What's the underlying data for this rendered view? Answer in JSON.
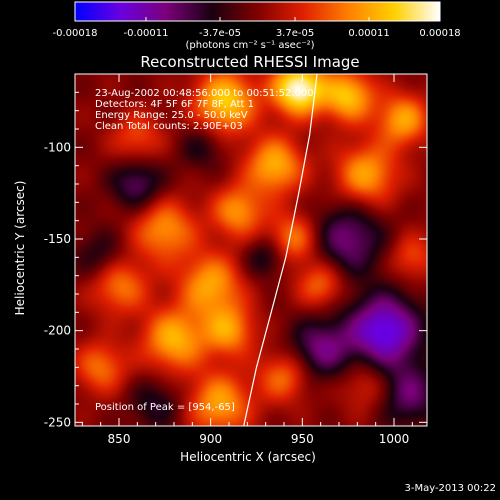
{
  "colorbar": {
    "tick_labels": [
      "-0.00018",
      "-0.00011",
      "-3.7e-05",
      "3.7e-05",
      "0.00011",
      "0.00018"
    ],
    "tick_values": [
      -0.00018,
      -0.00011,
      -3.7e-05,
      3.7e-05,
      0.00011,
      0.00018
    ],
    "range": [
      -0.00018,
      0.00018
    ],
    "units_text": "(photons cm⁻² s⁻¹ asec⁻²)",
    "colors": [
      "#0000ff",
      "#6a00e0",
      "#7a007a",
      "#1a0010",
      "#800000",
      "#e02000",
      "#ff8000",
      "#ffd000",
      "#ffffff"
    ]
  },
  "chart_data": {
    "type": "heatmap",
    "title": "Reconstructed RHESSI Image",
    "xlabel": "Heliocentric X (arcsec)",
    "ylabel": "Heliocentric Y (arcsec)",
    "xlim": [
      826,
      1018
    ],
    "ylim": [
      -252,
      -60
    ],
    "x_ticks": [
      850,
      900,
      950,
      1000
    ],
    "y_ticks": [
      -100,
      -150,
      -200,
      -250
    ],
    "x_tick_labels": [
      "850",
      "900",
      "950",
      "1000"
    ],
    "y_tick_labels": [
      "-100",
      "-150",
      "-200",
      "-250"
    ],
    "grid": false,
    "limb_curve": [
      [
        918,
        -252
      ],
      [
        925,
        -220
      ],
      [
        933,
        -190
      ],
      [
        941,
        -160
      ],
      [
        948,
        -125
      ],
      [
        954,
        -93
      ],
      [
        958,
        -60
      ]
    ],
    "peak": [
      954,
      -65
    ],
    "info_lines": [
      "23-Aug-2002 00:48:56.000 to 00:51:52.000",
      "Detectors: 4F 5F 6F 7F 8F, Att 1",
      "Energy Range: 25.0 - 50.0 keV",
      "Clean     Total counts: 2.90E+03"
    ],
    "peak_label": "Position of Peak = [954,-65]",
    "blobs": [
      {
        "x": 948,
        "y": -68,
        "v": 1.0,
        "w": 10
      },
      {
        "x": 908,
        "y": -75,
        "v": 0.75,
        "w": 12
      },
      {
        "x": 975,
        "y": -72,
        "v": 0.7,
        "w": 10
      },
      {
        "x": 1005,
        "y": -85,
        "v": 0.6,
        "w": 10
      },
      {
        "x": 985,
        "y": -115,
        "v": 0.6,
        "w": 12
      },
      {
        "x": 935,
        "y": -110,
        "v": 0.65,
        "w": 11
      },
      {
        "x": 915,
        "y": -135,
        "v": 0.55,
        "w": 10
      },
      {
        "x": 875,
        "y": -145,
        "v": 0.55,
        "w": 12
      },
      {
        "x": 945,
        "y": -150,
        "v": 0.5,
        "w": 10
      },
      {
        "x": 850,
        "y": -175,
        "v": 0.5,
        "w": 11
      },
      {
        "x": 900,
        "y": -175,
        "v": 0.6,
        "w": 12
      },
      {
        "x": 960,
        "y": -175,
        "v": 0.45,
        "w": 9
      },
      {
        "x": 880,
        "y": -205,
        "v": 0.65,
        "w": 12
      },
      {
        "x": 910,
        "y": -200,
        "v": 0.55,
        "w": 10
      },
      {
        "x": 840,
        "y": -220,
        "v": 0.45,
        "w": 10
      },
      {
        "x": 905,
        "y": -240,
        "v": 0.6,
        "w": 12
      },
      {
        "x": 940,
        "y": -225,
        "v": 0.45,
        "w": 10
      },
      {
        "x": 1010,
        "y": -160,
        "v": 0.35,
        "w": 9
      },
      {
        "x": 985,
        "y": -230,
        "v": 0.3,
        "w": 10
      },
      {
        "x": 860,
        "y": -95,
        "v": 0.35,
        "w": 10
      },
      {
        "x": 860,
        "y": -120,
        "v": -0.45,
        "w": 10
      },
      {
        "x": 975,
        "y": -150,
        "v": -0.5,
        "w": 14
      },
      {
        "x": 995,
        "y": -200,
        "v": -0.8,
        "w": 14
      },
      {
        "x": 1008,
        "y": -235,
        "v": -0.45,
        "w": 12
      },
      {
        "x": 960,
        "y": -210,
        "v": -0.5,
        "w": 12
      },
      {
        "x": 930,
        "y": -160,
        "v": -0.35,
        "w": 8
      },
      {
        "x": 840,
        "y": -160,
        "v": -0.3,
        "w": 10
      },
      {
        "x": 870,
        "y": -240,
        "v": -0.3,
        "w": 10
      },
      {
        "x": 895,
        "y": -100,
        "v": -0.25,
        "w": 9
      }
    ]
  },
  "footer_date": "3-May-2013 00:22"
}
